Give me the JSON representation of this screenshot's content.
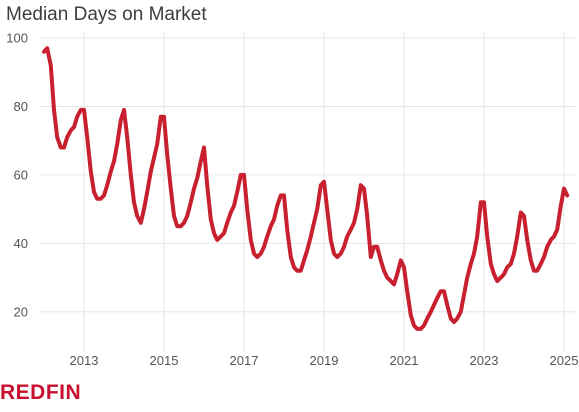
{
  "colors": {
    "line": "#c8202e",
    "grid": "#e6e6e6",
    "text": "#555555",
    "brand": "#c8102e"
  },
  "chart_data": {
    "type": "line",
    "title": "Median Days on Market",
    "xlabel": "",
    "ylabel": "",
    "ylim": [
      10,
      100
    ],
    "xlim": [
      2011.9,
      2025.3
    ],
    "y_ticks": [
      "20",
      "40",
      "60",
      "80",
      "100"
    ],
    "x_ticks": [
      "2013",
      "2015",
      "2017",
      "2019",
      "2021",
      "2023",
      "2025"
    ],
    "grid": true,
    "legend": "none",
    "series": [
      {
        "name": "",
        "points": [
          [
            2012.0,
            96
          ],
          [
            2012.08,
            97
          ],
          [
            2012.17,
            92
          ],
          [
            2012.25,
            79
          ],
          [
            2012.33,
            71
          ],
          [
            2012.42,
            68
          ],
          [
            2012.5,
            68
          ],
          [
            2012.58,
            71
          ],
          [
            2012.67,
            73
          ],
          [
            2012.75,
            74
          ],
          [
            2012.83,
            77
          ],
          [
            2012.92,
            79
          ],
          [
            2013.0,
            79
          ],
          [
            2013.08,
            71
          ],
          [
            2013.17,
            61
          ],
          [
            2013.25,
            55
          ],
          [
            2013.33,
            53
          ],
          [
            2013.42,
            53
          ],
          [
            2013.5,
            54
          ],
          [
            2013.58,
            57
          ],
          [
            2013.67,
            61
          ],
          [
            2013.75,
            64
          ],
          [
            2013.83,
            69
          ],
          [
            2013.92,
            76
          ],
          [
            2014.0,
            79
          ],
          [
            2014.08,
            71
          ],
          [
            2014.17,
            60
          ],
          [
            2014.25,
            52
          ],
          [
            2014.33,
            48
          ],
          [
            2014.42,
            46
          ],
          [
            2014.5,
            50
          ],
          [
            2014.58,
            55
          ],
          [
            2014.67,
            61
          ],
          [
            2014.75,
            65
          ],
          [
            2014.83,
            69
          ],
          [
            2014.92,
            77
          ],
          [
            2015.0,
            77
          ],
          [
            2015.08,
            66
          ],
          [
            2015.17,
            56
          ],
          [
            2015.25,
            48
          ],
          [
            2015.33,
            45
          ],
          [
            2015.42,
            45
          ],
          [
            2015.5,
            46
          ],
          [
            2015.58,
            48
          ],
          [
            2015.67,
            52
          ],
          [
            2015.75,
            56
          ],
          [
            2015.83,
            59
          ],
          [
            2015.92,
            64
          ],
          [
            2016.0,
            68
          ],
          [
            2016.08,
            57
          ],
          [
            2016.17,
            47
          ],
          [
            2016.25,
            43
          ],
          [
            2016.33,
            41
          ],
          [
            2016.42,
            42
          ],
          [
            2016.5,
            43
          ],
          [
            2016.58,
            46
          ],
          [
            2016.67,
            49
          ],
          [
            2016.75,
            51
          ],
          [
            2016.83,
            55
          ],
          [
            2016.92,
            60
          ],
          [
            2017.0,
            60
          ],
          [
            2017.08,
            50
          ],
          [
            2017.17,
            41
          ],
          [
            2017.25,
            37
          ],
          [
            2017.33,
            36
          ],
          [
            2017.42,
            37
          ],
          [
            2017.5,
            39
          ],
          [
            2017.58,
            42
          ],
          [
            2017.67,
            45
          ],
          [
            2017.75,
            47
          ],
          [
            2017.83,
            51
          ],
          [
            2017.92,
            54
          ],
          [
            2018.0,
            54
          ],
          [
            2018.08,
            44
          ],
          [
            2018.17,
            36
          ],
          [
            2018.25,
            33
          ],
          [
            2018.33,
            32
          ],
          [
            2018.42,
            32
          ],
          [
            2018.5,
            35
          ],
          [
            2018.58,
            38
          ],
          [
            2018.67,
            42
          ],
          [
            2018.75,
            46
          ],
          [
            2018.83,
            50
          ],
          [
            2018.92,
            57
          ],
          [
            2019.0,
            58
          ],
          [
            2019.08,
            50
          ],
          [
            2019.17,
            41
          ],
          [
            2019.25,
            37
          ],
          [
            2019.33,
            36
          ],
          [
            2019.42,
            37
          ],
          [
            2019.5,
            39
          ],
          [
            2019.58,
            42
          ],
          [
            2019.67,
            44
          ],
          [
            2019.75,
            46
          ],
          [
            2019.83,
            50
          ],
          [
            2019.92,
            57
          ],
          [
            2020.0,
            56
          ],
          [
            2020.08,
            48
          ],
          [
            2020.17,
            36
          ],
          [
            2020.25,
            39
          ],
          [
            2020.33,
            39
          ],
          [
            2020.42,
            35
          ],
          [
            2020.5,
            32
          ],
          [
            2020.58,
            30
          ],
          [
            2020.67,
            29
          ],
          [
            2020.75,
            28
          ],
          [
            2020.83,
            31
          ],
          [
            2020.92,
            35
          ],
          [
            2021.0,
            33
          ],
          [
            2021.08,
            26
          ],
          [
            2021.17,
            19
          ],
          [
            2021.25,
            16
          ],
          [
            2021.33,
            15
          ],
          [
            2021.42,
            15
          ],
          [
            2021.5,
            16
          ],
          [
            2021.58,
            18
          ],
          [
            2021.67,
            20
          ],
          [
            2021.75,
            22
          ],
          [
            2021.83,
            24
          ],
          [
            2021.92,
            26
          ],
          [
            2022.0,
            26
          ],
          [
            2022.08,
            22
          ],
          [
            2022.17,
            18
          ],
          [
            2022.25,
            17
          ],
          [
            2022.33,
            18
          ],
          [
            2022.42,
            20
          ],
          [
            2022.5,
            25
          ],
          [
            2022.58,
            30
          ],
          [
            2022.67,
            34
          ],
          [
            2022.75,
            37
          ],
          [
            2022.83,
            42
          ],
          [
            2022.92,
            52
          ],
          [
            2023.0,
            52
          ],
          [
            2023.08,
            42
          ],
          [
            2023.17,
            34
          ],
          [
            2023.25,
            31
          ],
          [
            2023.33,
            29
          ],
          [
            2023.42,
            30
          ],
          [
            2023.5,
            31
          ],
          [
            2023.58,
            33
          ],
          [
            2023.67,
            34
          ],
          [
            2023.75,
            37
          ],
          [
            2023.83,
            42
          ],
          [
            2023.92,
            49
          ],
          [
            2024.0,
            48
          ],
          [
            2024.08,
            41
          ],
          [
            2024.17,
            35
          ],
          [
            2024.25,
            32
          ],
          [
            2024.33,
            32
          ],
          [
            2024.42,
            34
          ],
          [
            2024.5,
            36
          ],
          [
            2024.58,
            39
          ],
          [
            2024.67,
            41
          ],
          [
            2024.75,
            42
          ],
          [
            2024.83,
            44
          ],
          [
            2024.92,
            51
          ],
          [
            2025.0,
            56
          ],
          [
            2025.08,
            54
          ]
        ]
      }
    ]
  },
  "brand": {
    "logo_text": "REDFIN"
  }
}
